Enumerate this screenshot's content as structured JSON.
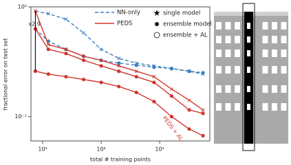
{
  "chart_data": {
    "type": "line",
    "xlabel": "total # training points",
    "ylabel": "fractional error on test set",
    "log_x": true,
    "log_y": true,
    "x": [
      750,
      1250,
      2500,
      5000,
      10000,
      20000,
      40000,
      80000,
      160000,
      320000,
      550000
    ],
    "xlim": [
      630,
      720000
    ],
    "ylim": [
      0.06,
      1
    ],
    "xticks": [
      {
        "value": 1000,
        "label": "10³"
      },
      {
        "value": 10000,
        "label": "10⁴"
      },
      {
        "value": 100000,
        "label": "10⁵"
      }
    ],
    "yticks": [
      {
        "value": 1,
        "label": "10⁰"
      },
      {
        "value": 0.1,
        "label": "10⁻¹"
      }
    ],
    "legend": {
      "lines": [
        {
          "name": "NN-only",
          "color": "#3b7dbf",
          "dash": true
        },
        {
          "name": "PEDS",
          "color": "#d0342c",
          "dash": false
        }
      ],
      "markers": [
        {
          "name": "single model",
          "marker": "star"
        },
        {
          "name": "ensemble model",
          "marker": "dot"
        },
        {
          "name": "ensemble + AL",
          "marker": "circle"
        }
      ]
    },
    "series": [
      {
        "line": 0,
        "marker": "x",
        "values": [
          0.917,
          0.866,
          0.772,
          0.579,
          0.41,
          0.34,
          0.307,
          0.29,
          0.274,
          0.259,
          0.244
        ]
      },
      {
        "line": 0,
        "marker": "dot",
        "values": [
          0.631,
          0.487,
          0.41,
          0.355,
          0.326,
          0.307,
          0.294,
          0.282,
          0.274,
          0.259,
          0.251
        ]
      },
      {
        "line": 1,
        "marker": "x",
        "values": [
          0.917,
          0.453,
          0.41,
          0.355,
          0.326,
          0.29,
          0.259,
          0.231,
          0.178,
          0.141,
          0.115
        ]
      },
      {
        "line": 1,
        "marker": "dot",
        "values": [
          0.631,
          0.41,
          0.376,
          0.326,
          0.29,
          0.259,
          0.231,
          0.205,
          0.154,
          0.115,
          0.107
        ]
      },
      {
        "line": 1,
        "marker": "dot",
        "values": [
          0.259,
          0.244,
          0.231,
          0.218,
          0.205,
          0.188,
          0.166,
          0.137,
          0.1,
          0.077,
          0.067
        ]
      }
    ],
    "annotations": [
      {
        "text": "x2.9"
      },
      {
        "text": "PEDS + AL"
      }
    ]
  }
}
